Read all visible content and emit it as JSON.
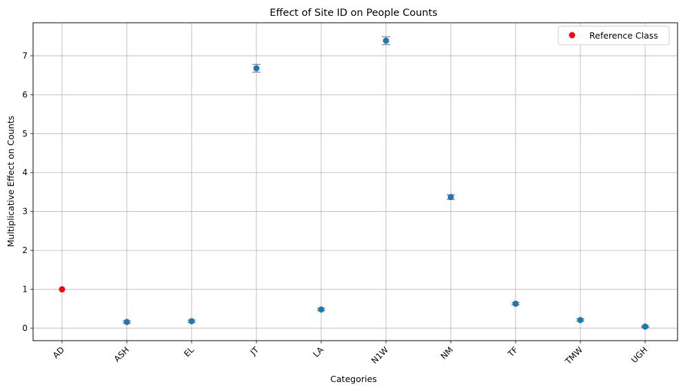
{
  "chart_data": {
    "type": "scatter",
    "title": "Effect of Site ID on People Counts",
    "xlabel": "Categories",
    "ylabel": "Multiplicative Effect on Counts",
    "categories": [
      "AD",
      "ASH",
      "EL",
      "JT",
      "LA",
      "N1W",
      "NM",
      "TF",
      "TMW",
      "UGH"
    ],
    "ylim": [
      -0.32,
      7.85
    ],
    "yticks": [
      "0",
      "1",
      "2",
      "3",
      "4",
      "5",
      "6",
      "7"
    ],
    "grid": true,
    "series": [
      {
        "name": "Reference Class",
        "color": "#ff0000",
        "points": [
          {
            "category": "AD",
            "value": 1.0
          }
        ]
      },
      {
        "color": "#1f77b4",
        "error_color": "#808080",
        "points": [
          {
            "category": "ASH",
            "value": 0.16,
            "lower": 0.13,
            "upper": 0.19
          },
          {
            "category": "EL",
            "value": 0.18,
            "lower": 0.15,
            "upper": 0.21
          },
          {
            "category": "JT",
            "value": 6.68,
            "lower": 6.58,
            "upper": 6.78
          },
          {
            "category": "LA",
            "value": 0.48,
            "lower": 0.45,
            "upper": 0.51
          },
          {
            "category": "N1W",
            "value": 7.39,
            "lower": 7.29,
            "upper": 7.49
          },
          {
            "category": "NM",
            "value": 3.37,
            "lower": 3.31,
            "upper": 3.43
          },
          {
            "category": "TF",
            "value": 0.63,
            "lower": 0.6,
            "upper": 0.66
          },
          {
            "category": "TMW",
            "value": 0.21,
            "lower": 0.18,
            "upper": 0.24
          },
          {
            "category": "UGH",
            "value": 0.04,
            "lower": 0.02,
            "upper": 0.06
          }
        ]
      }
    ],
    "legend": {
      "position": "top-right",
      "entries": [
        "Reference Class"
      ]
    }
  }
}
